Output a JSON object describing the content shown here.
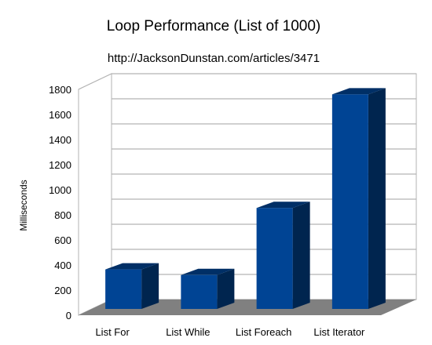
{
  "chart_data": {
    "type": "bar",
    "title": "Loop Performance (List of 1000)",
    "subtitle": "http://JacksonDunstan.com/articles/3471",
    "ylabel": "Milliseconds",
    "xlabel": "",
    "categories": [
      "List For",
      "List While",
      "List Foreach",
      "List Iterator"
    ],
    "values": [
      315,
      270,
      805,
      1710
    ],
    "ylim": [
      0,
      1800
    ],
    "yticks": [
      0,
      200,
      400,
      600,
      800,
      1000,
      1200,
      1400,
      1600,
      1800
    ],
    "grid": true,
    "legend": "none",
    "style": "3d",
    "colors": {
      "bar_front": "#004494",
      "bar_side": "#00254f",
      "bar_top": "#002f66",
      "floor": "#808080",
      "grid": "#b3b3b3"
    }
  }
}
